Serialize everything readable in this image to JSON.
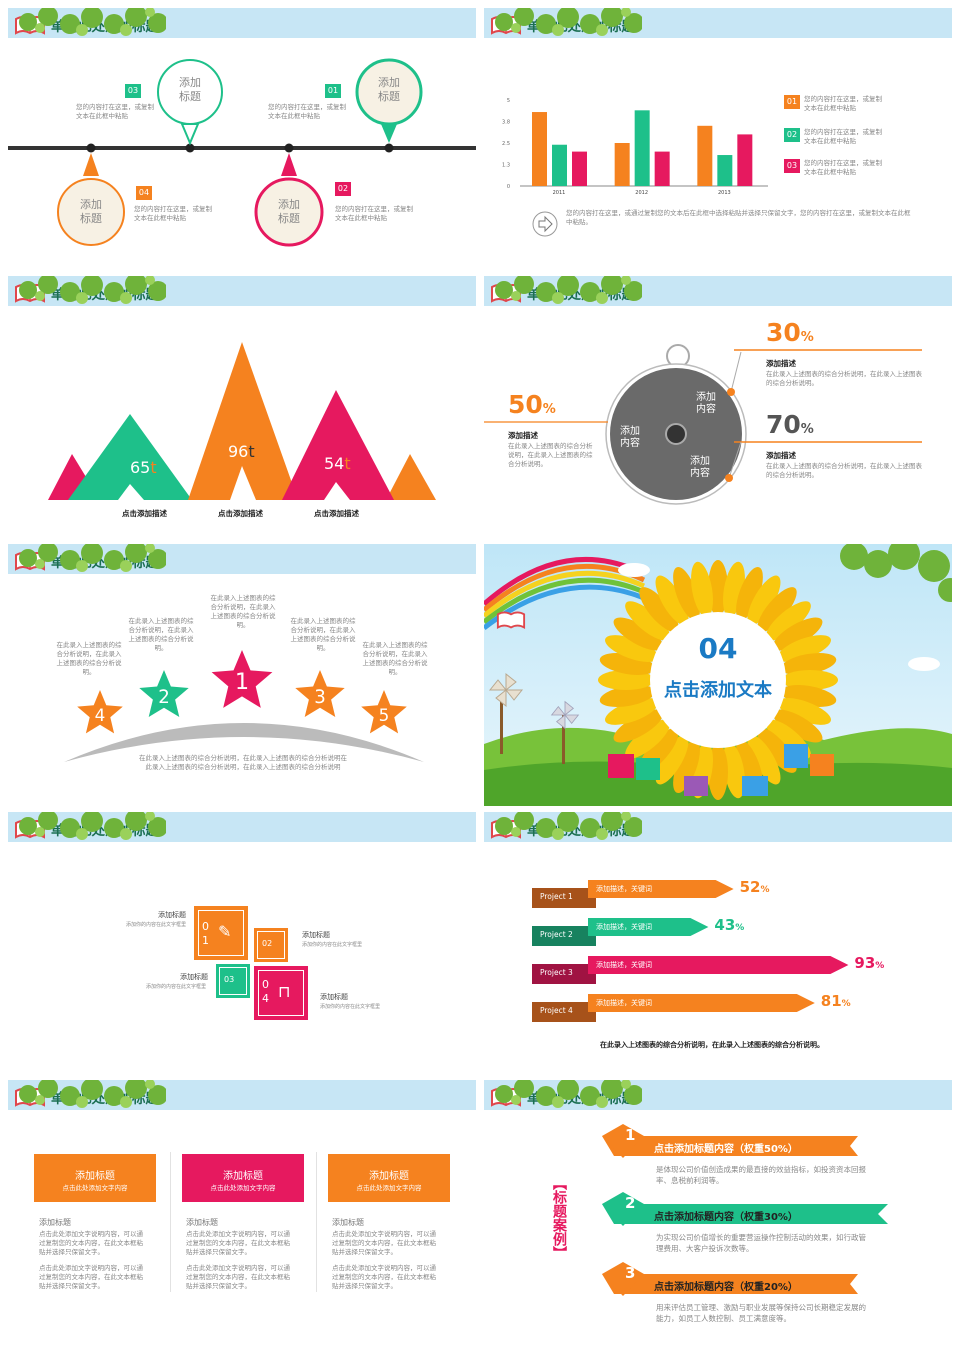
{
  "header_title": "单击此处添加标题",
  "colors": {
    "orange": "#f5821f",
    "green": "#1ec08a",
    "pink": "#e6195f",
    "header_bg": "#c7e6f5",
    "title_green": "#1b6f52",
    "blue": "#1a7ac4"
  },
  "slide1": {
    "bubbles": [
      {
        "text": "添加\n标题",
        "num": "03",
        "desc": "您的内容打在这里，或复制文本在此框中粘贴"
      },
      {
        "text": "添加\n标题",
        "num": "01",
        "desc": "您的内容打在这里，或复制文本在此框中粘贴"
      },
      {
        "text": "添加\n标题",
        "num": "04",
        "desc": "您的内容打在这里，或复制文本在此框中粘贴"
      },
      {
        "text": "添加\n标题",
        "num": "02",
        "desc": "您的内容打在这里，或复制文本在此框中粘贴"
      }
    ]
  },
  "chart_data": {
    "type": "bar",
    "categories": [
      "2011",
      "2012",
      "2013"
    ],
    "series": [
      {
        "values": [
          4.3,
          2.5,
          3.5
        ]
      },
      {
        "values": [
          2.4,
          4.4,
          1.8
        ]
      },
      {
        "values": [
          2.0,
          2.0,
          3.0
        ]
      }
    ],
    "yticks": [
      "0",
      "1.3",
      "2.5",
      "3.8",
      "5"
    ],
    "ylim": [
      0,
      5
    ]
  },
  "slide2": {
    "legend": [
      {
        "num": "01",
        "desc": "您的内容打在这里，或复制文本在此框中粘贴"
      },
      {
        "num": "02",
        "desc": "您的内容打在这里，或复制文本在此框中粘贴"
      },
      {
        "num": "03",
        "desc": "您的内容打在这里，或复制文本在此框中粘贴"
      }
    ],
    "note": "您的内容打在这里，或通过复制您的文本后在此框中选择粘贴并选择只保留文字，您的内容打在这里，或复制文本在此框中粘贴。"
  },
  "slide3": {
    "peaks": [
      {
        "value": "65",
        "unit": "t"
      },
      {
        "value": "96",
        "unit": "t"
      },
      {
        "value": "54",
        "unit": "t"
      }
    ],
    "labels": [
      "点击添加描述",
      "点击添加描述",
      "点击添加描述"
    ]
  },
  "slide4": {
    "pct_left": "50",
    "pct_right_top": "30",
    "pct_right_bot": "70",
    "pct_sign": "%",
    "desc_title": "添加描述",
    "desc_text": "在此录入上述图表的综合分析说明，在此录入上述图表的综合分析说明。",
    "dial_labels": [
      "添加\n内容",
      "添加\n内容",
      "添加\n内容"
    ]
  },
  "slide5": {
    "stars": [
      "1",
      "2",
      "3",
      "4",
      "5"
    ],
    "star_text": "在此录入上述图表的综合分析说明，在此录入上述图表的综合分析说明。",
    "bottom_text": "在此录入上述图表的综合分析说明，在此录入上述图表的综合分析说明在此录入上述图表的综合分析说明，在此录入上述图表的综合分析说明"
  },
  "slide6": {
    "number": "04",
    "text": "点击添加文本"
  },
  "slide7": {
    "items": [
      {
        "title": "添加标题",
        "num": "0\n1",
        "desc": "添加你的内容在此文字框里"
      },
      {
        "title": "添加标题",
        "num": "02",
        "desc": "添加你的内容在此文字框里"
      },
      {
        "title": "添加标题",
        "num": "03",
        "desc": "添加你的内容在此文字框里"
      },
      {
        "title": "添加标题",
        "num": "0\n4",
        "desc": "添加你的内容在此文字框里"
      }
    ]
  },
  "slide8": {
    "projects": [
      {
        "name": "Project 1",
        "text": "添加描述，关键词",
        "pct": "52",
        "value": 52
      },
      {
        "name": "Project 2",
        "text": "添加描述，关键词",
        "pct": "43",
        "value": 43
      },
      {
        "name": "Project 3",
        "text": "添加描述，关键词",
        "pct": "93",
        "value": 93
      },
      {
        "name": "Project 4",
        "text": "添加描述，关键词",
        "pct": "81",
        "value": 81
      }
    ],
    "pct_sign": "%",
    "caption": "在此录入上述图表的综合分析说明，在此录入上述图表的综合分析说明。"
  },
  "slide9": {
    "cards": [
      {
        "title": "添加标题",
        "sub": "点击此处添加文字内容",
        "h": "添加标题",
        "p1": "点击此处添加文字说明内容，可以通过复制您的文本内容，在此文本框粘贴并选择只保留文字。",
        "p2": "点击此处添加文字说明内容，可以通过复制您的文本内容，在此文本框粘贴并选择只保留文字。"
      },
      {
        "title": "添加标题",
        "sub": "点击此处添加文字内容",
        "h": "添加标题",
        "p1": "点击此处添加文字说明内容，可以通过复制您的文本内容，在此文本框粘贴并选择只保留文字。",
        "p2": "点击此处添加文字说明内容，可以通过复制您的文本内容，在此文本框粘贴并选择只保留文字。"
      },
      {
        "title": "添加标题",
        "sub": "点击此处添加文字内容",
        "h": "添加标题",
        "p1": "点击此处添加文字说明内容，可以通过复制您的文本内容，在此文本框粘贴并选择只保留文字。",
        "p2": "点击此处添加文字说明内容，可以通过复制您的文本内容，在此文本框粘贴并选择只保留文字。"
      }
    ]
  },
  "slide10": {
    "side": "【标题案例】",
    "rows": [
      {
        "num": "1",
        "title": "点击添加标题内容（权重50%）",
        "desc": "是体现公司价值创造成果的最直接的效益指标，如投资资本回报率、息税前利润等。"
      },
      {
        "num": "2",
        "title": "点击添加标题内容（权重30%）",
        "desc": "为实现公司价值增长的重要营运操作控制活动的效果，如行政管理费用、大客户投诉次数等。"
      },
      {
        "num": "3",
        "title": "点击添加标题内容（权重20%）",
        "desc": "用来评估员工管理、激励与职业发展等保持公司长期稳定发展的能力，如员工人数控制、员工满意度等。"
      }
    ]
  }
}
